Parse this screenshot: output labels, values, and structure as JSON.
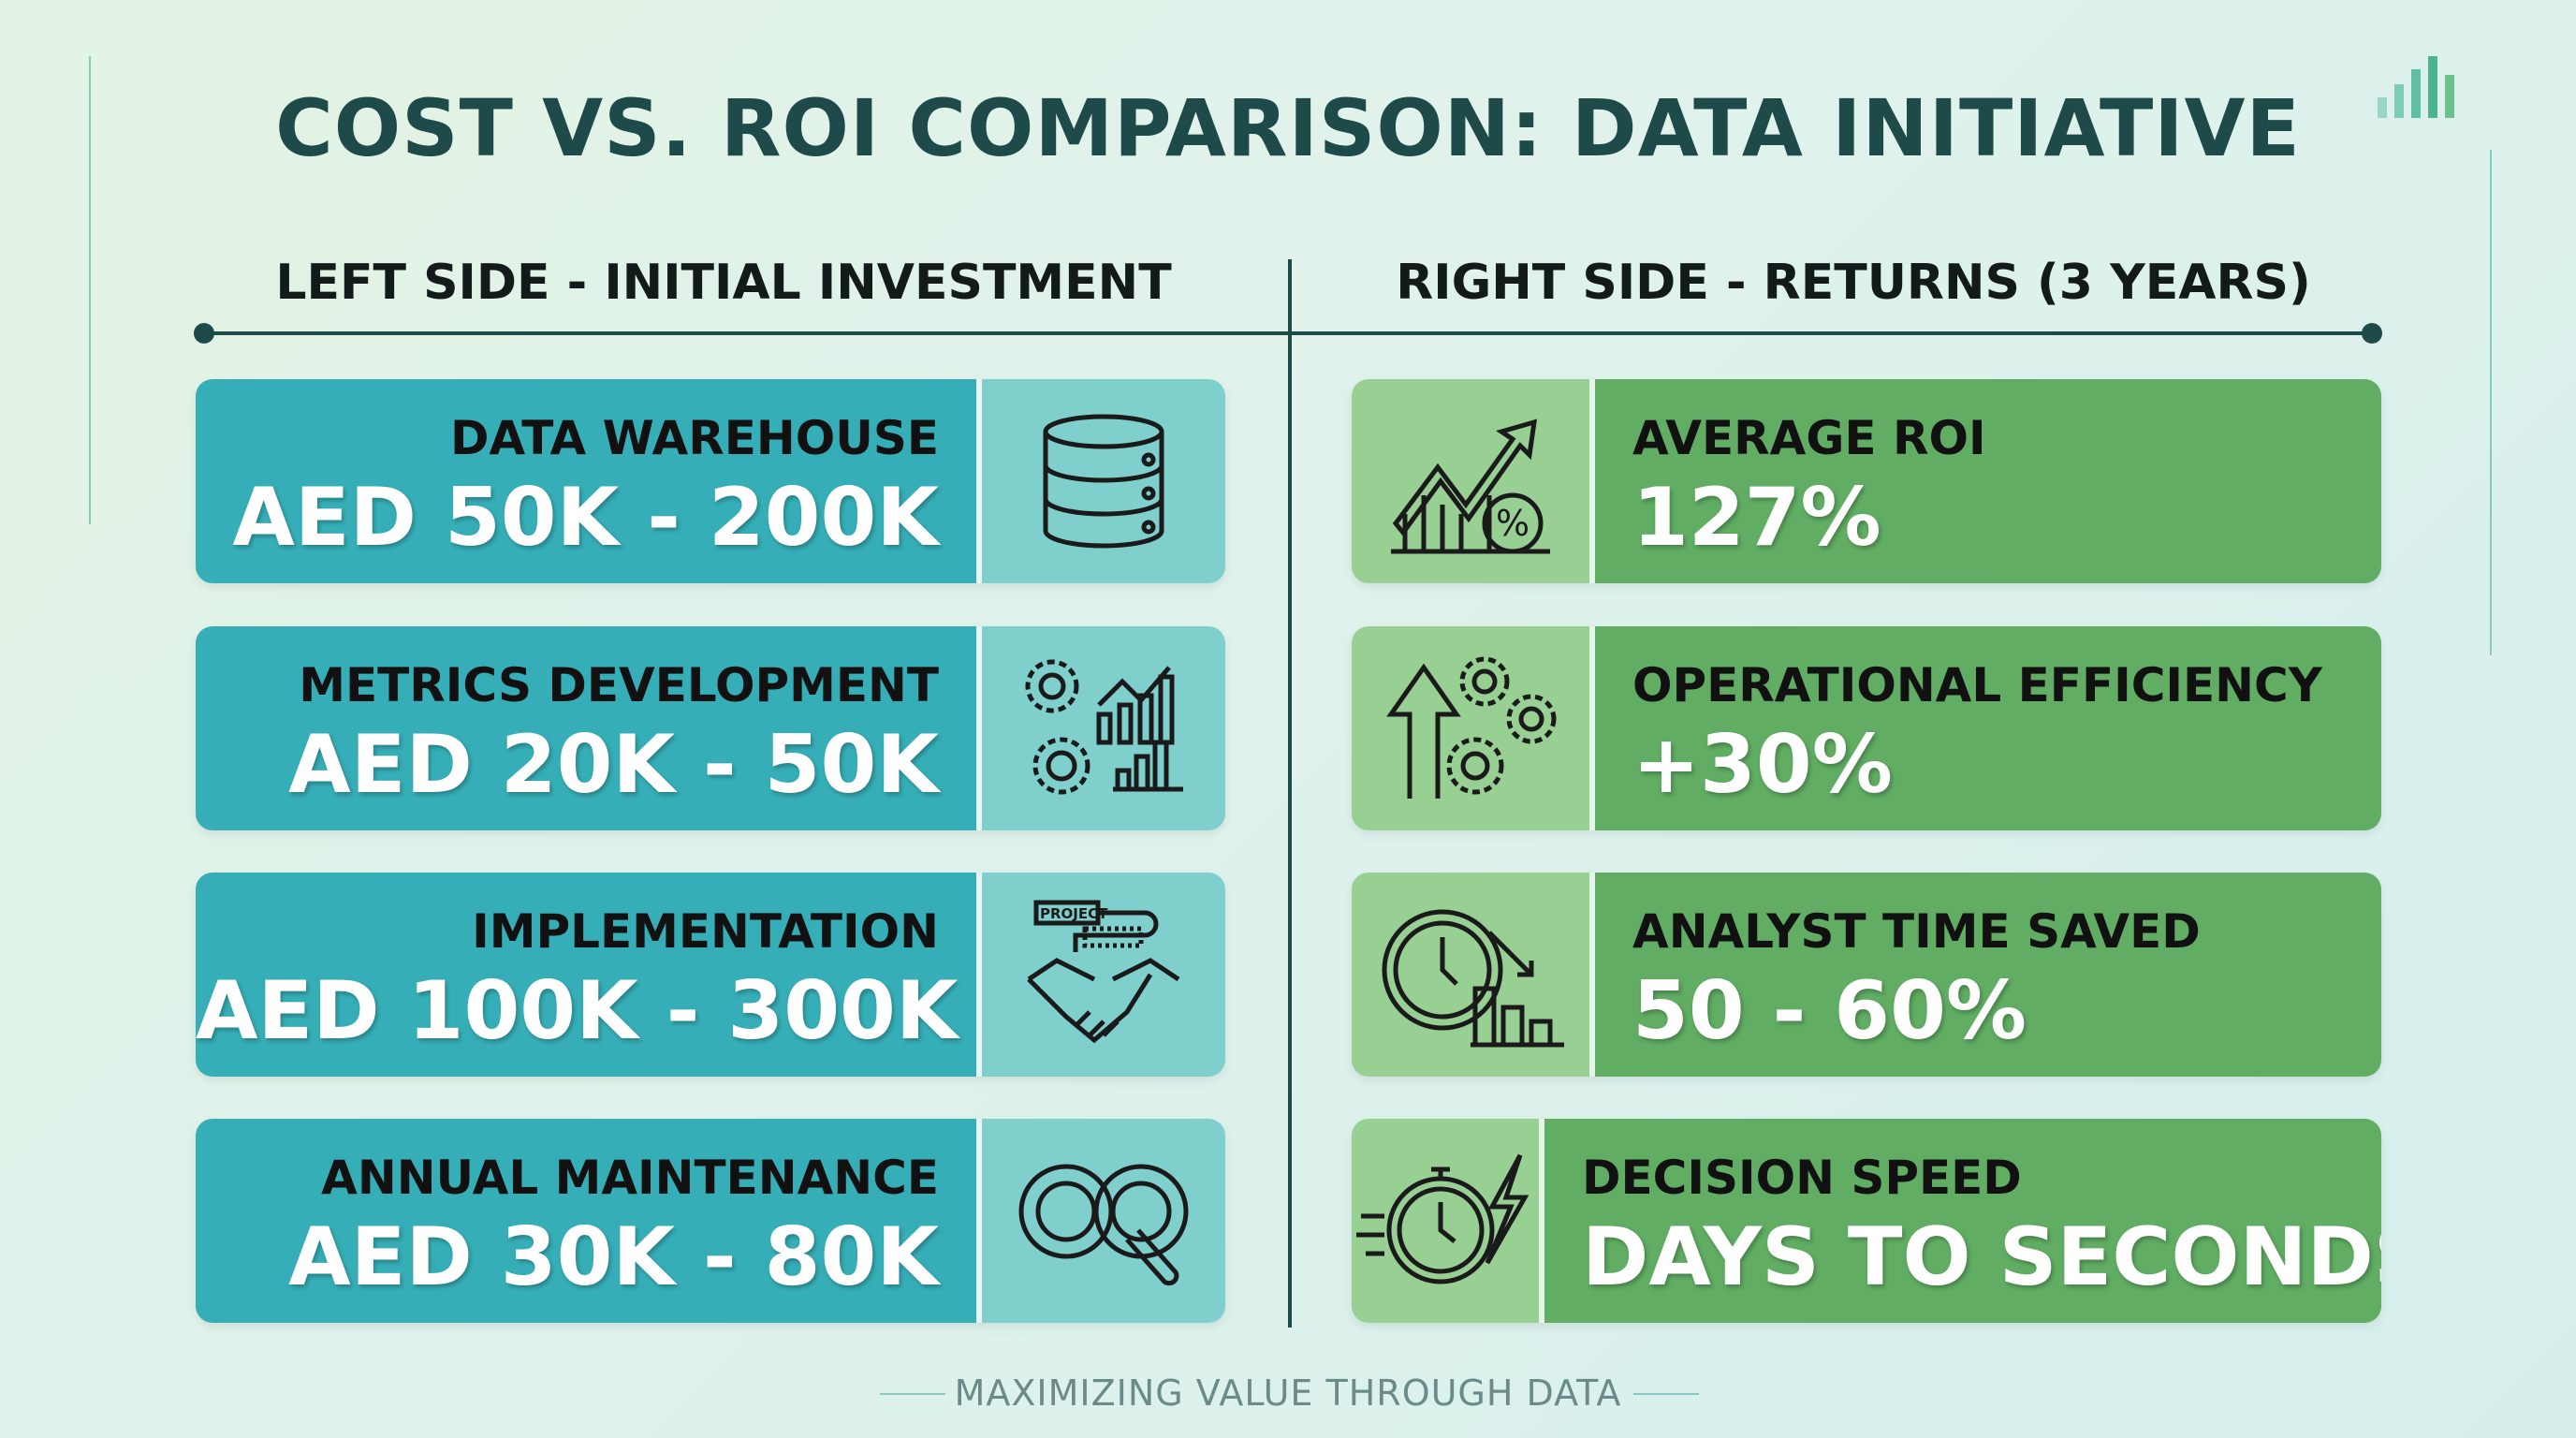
{
  "title": "COST VS. ROI COMPARISON: DATA INITIATIVE",
  "left_header": "LEFT SIDE - INITIAL INVESTMENT",
  "right_header": "RIGHT SIDE - RETURNS (3 YEARS)",
  "costs": [
    {
      "label": "DATA WAREHOUSE",
      "value": "AED 50K - 200K",
      "icon": "database-icon"
    },
    {
      "label": "METRICS DEVELOPMENT",
      "value": "AED 20K - 50K",
      "icon": "gears-chart-icon"
    },
    {
      "label": "IMPLEMENTATION",
      "value": "AED 100K - 300K",
      "icon": "handshake-project-icon",
      "icon_text": "PROJECT"
    },
    {
      "label": "ANNUAL MAINTENANCE",
      "value": "AED 30K - 80K",
      "icon": "maintenance-loop-wrench-icon"
    }
  ],
  "returns": [
    {
      "label": "AVERAGE ROI",
      "value": "127%",
      "icon": "growth-chart-percent-icon"
    },
    {
      "label": "OPERATIONAL EFFICIENCY",
      "value": "+30%",
      "icon": "arrow-up-gears-icon"
    },
    {
      "label": "ANALYST TIME SAVED",
      "value": "50 - 60%",
      "icon": "clock-bars-down-icon"
    },
    {
      "label": "DECISION SPEED",
      "value": "DAYS TO SECONDS",
      "icon": "stopwatch-lightning-icon"
    }
  ],
  "footer": "MAXIMIZING VALUE THROUGH DATA",
  "colors": {
    "title": "#1f4a4a",
    "cost_card": "#36aeb7",
    "cost_icon_bg": "#7fd0cd",
    "return_card": "#60ad63",
    "return_icon_bg": "#98cf93"
  }
}
